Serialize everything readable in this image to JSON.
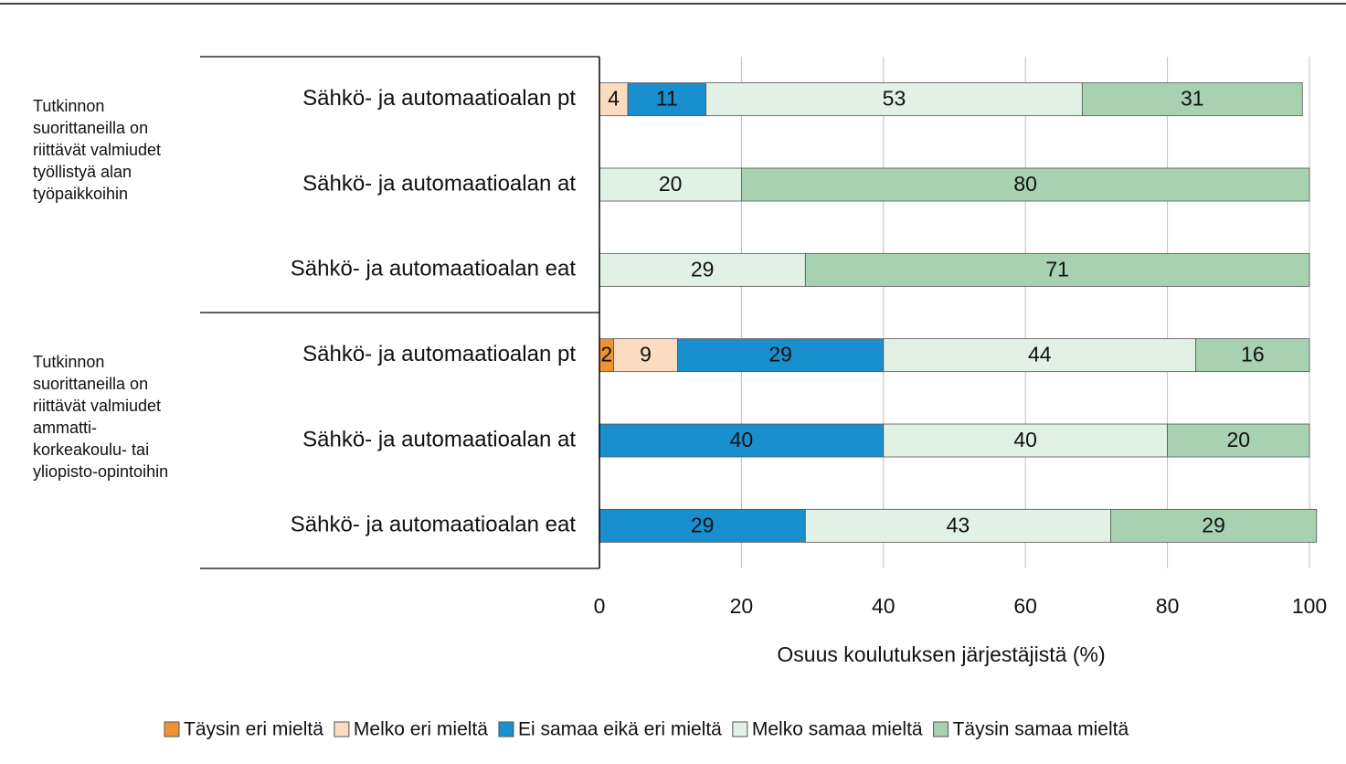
{
  "chart_data": {
    "type": "stacked_barh",
    "categories": [
      "Sähkö- ja automaatioalan pt",
      "Sähkö- ja automaatioalan at",
      "Sähkö- ja automaatioalan eat",
      "Sähkö- ja automaatioalan pt",
      "Sähkö- ja automaatioalan at",
      "Sähkö- ja automaatioalan eat"
    ],
    "groups": [
      {
        "lines": [
          "Tutkinnon",
          "suorittaneilla on",
          "riittävät valmiudet",
          "työllistyä alan",
          "työpaikkoihin"
        ]
      },
      {
        "lines": [
          "Tutkinnon",
          "suorittaneilla on",
          "riittävät valmiudet",
          "ammatti-",
          "korkeakoulu- tai",
          "yliopisto-opintoihin"
        ]
      }
    ],
    "series": [
      {
        "name": "Täysin eri mieltä",
        "color": "#ee932f",
        "values": [
          null,
          null,
          null,
          2,
          null,
          null
        ]
      },
      {
        "name": "Melko eri mieltä",
        "color": "#fbdcc0",
        "values": [
          4,
          null,
          null,
          9,
          null,
          null
        ]
      },
      {
        "name": "Ei samaa eikä eri mieltä",
        "color": "#1a8fce",
        "values": [
          11,
          null,
          null,
          29,
          40,
          29
        ]
      },
      {
        "name": "Melko samaa mieltä",
        "color": "#e1f1e6",
        "values": [
          53,
          20,
          29,
          44,
          40,
          43
        ]
      },
      {
        "name": "Täysin samaa mieltä",
        "color": "#a7d1b1",
        "values": [
          31,
          80,
          71,
          16,
          20,
          29
        ]
      }
    ],
    "xlabel": "Osuus koulutuksen järjestäjistä (%)",
    "xlim": [
      0,
      100
    ],
    "xticks": [
      0,
      20,
      40,
      60,
      80,
      100
    ],
    "grid": true,
    "legend": "bottom"
  }
}
